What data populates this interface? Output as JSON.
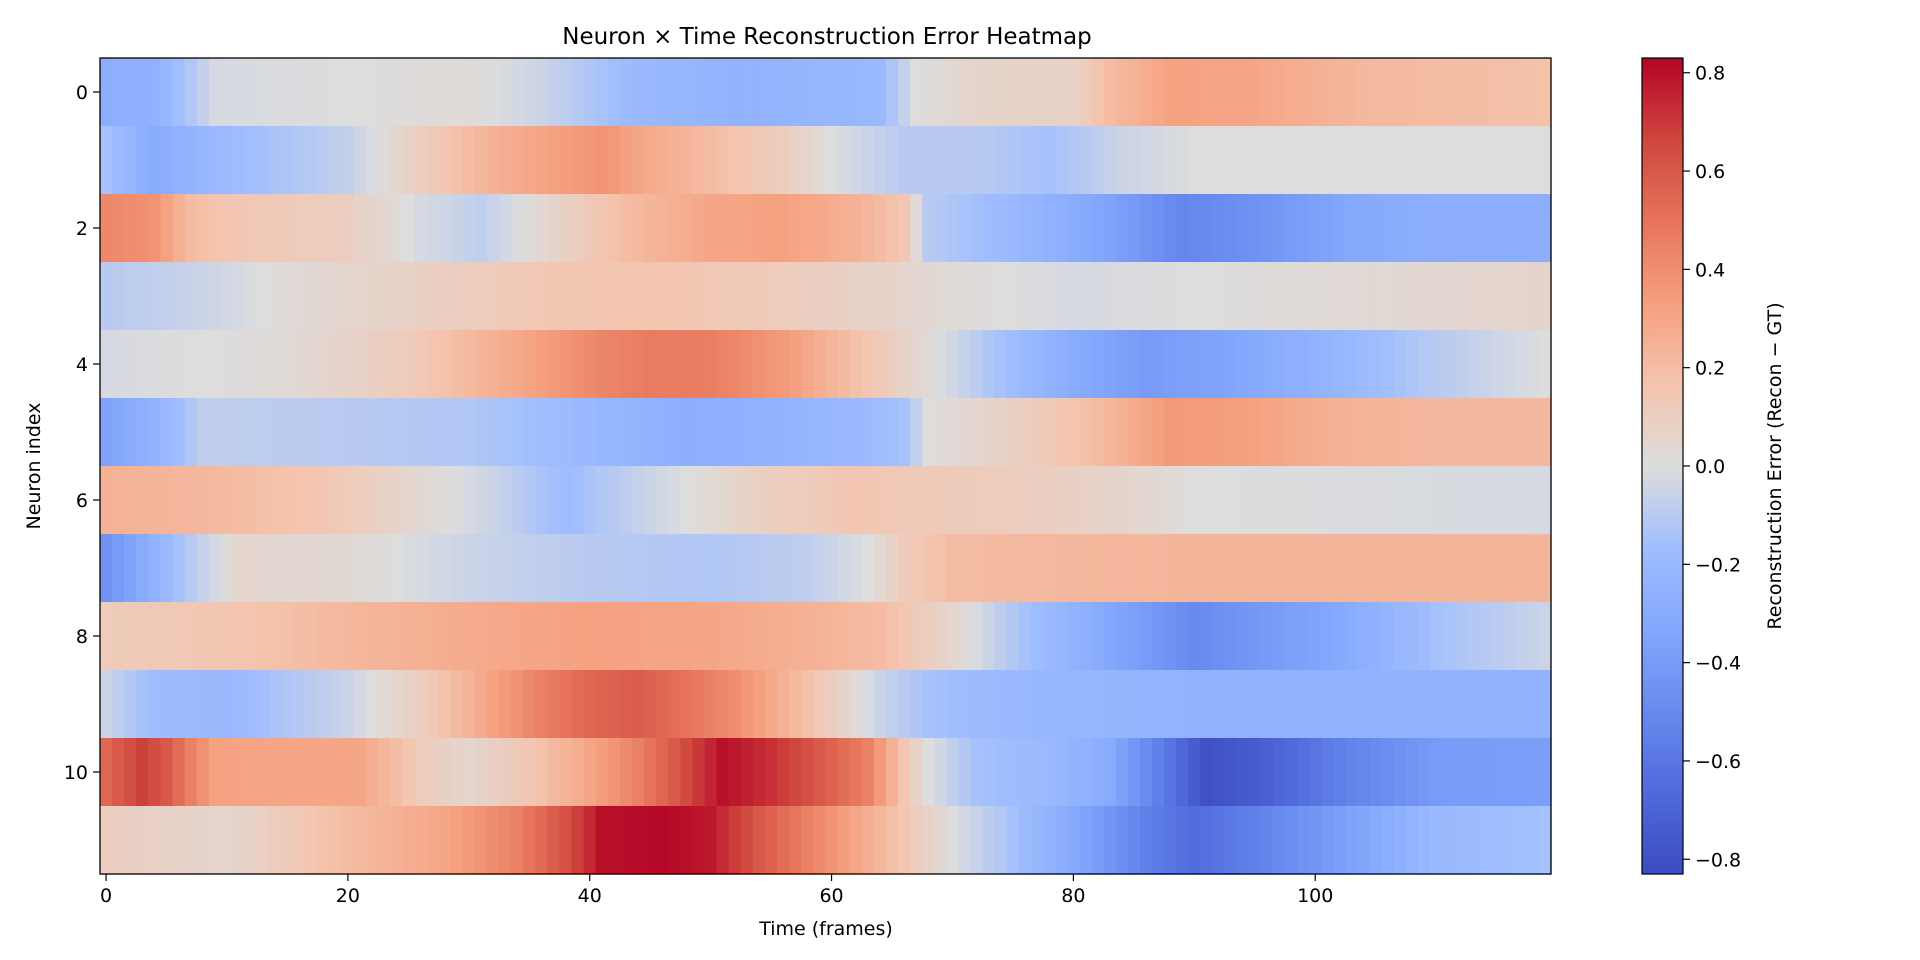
{
  "chart_data": {
    "type": "heatmap",
    "title": "Neuron × Time Reconstruction Error Heatmap",
    "xlabel": "Time (frames)",
    "ylabel": "Neuron index",
    "colorbar_label": "Reconstruction Error (Recon − GT)",
    "colormap": "coolwarm",
    "n_rows": 12,
    "n_cols": 120,
    "xlim": [
      -0.5,
      119.5
    ],
    "ylim": [
      11.5,
      -0.5
    ],
    "color_range": [
      -0.83,
      0.83
    ],
    "x_ticks": [
      0,
      20,
      40,
      60,
      80,
      100
    ],
    "y_ticks": [
      0,
      2,
      4,
      6,
      8,
      10
    ],
    "colorbar_ticks": [
      0.8,
      0.6,
      0.4,
      0.2,
      0.0,
      -0.2,
      -0.4,
      -0.6,
      -0.8
    ],
    "colorbar_tick_labels": [
      "0.8",
      "0.6",
      "0.4",
      "0.2",
      "0.0",
      "−0.2",
      "−0.4",
      "−0.6",
      "−0.8"
    ],
    "row_profiles": [
      [
        [
          0,
          -0.28
        ],
        [
          4,
          -0.26
        ],
        [
          9,
          -0.02
        ],
        [
          30,
          0.02
        ],
        [
          36,
          -0.05
        ],
        [
          44,
          -0.2
        ],
        [
          52,
          -0.25
        ],
        [
          60,
          -0.22
        ],
        [
          64,
          -0.2
        ],
        [
          67,
          0.0
        ],
        [
          72,
          0.06
        ],
        [
          80,
          0.08
        ],
        [
          83,
          0.2
        ],
        [
          88,
          0.32
        ],
        [
          95,
          0.3
        ],
        [
          104,
          0.22
        ],
        [
          110,
          0.2
        ],
        [
          119,
          0.18
        ]
      ],
      [
        [
          0,
          -0.15
        ],
        [
          4,
          -0.3
        ],
        [
          9,
          -0.2
        ],
        [
          20,
          -0.07
        ],
        [
          26,
          0.1
        ],
        [
          32,
          0.25
        ],
        [
          37,
          0.32
        ],
        [
          41,
          0.38
        ],
        [
          44,
          0.3
        ],
        [
          50,
          0.2
        ],
        [
          56,
          0.1
        ],
        [
          60,
          0.0
        ],
        [
          66,
          -0.1
        ],
        [
          72,
          -0.1
        ],
        [
          78,
          -0.15
        ],
        [
          84,
          -0.05
        ],
        [
          90,
          0.0
        ],
        [
          119,
          0.0
        ]
      ],
      [
        [
          0,
          0.42
        ],
        [
          4,
          0.38
        ],
        [
          7,
          0.2
        ],
        [
          10,
          0.15
        ],
        [
          20,
          0.1
        ],
        [
          26,
          -0.02
        ],
        [
          31,
          -0.08
        ],
        [
          37,
          0.06
        ],
        [
          43,
          0.2
        ],
        [
          50,
          0.3
        ],
        [
          56,
          0.32
        ],
        [
          62,
          0.25
        ],
        [
          66,
          0.15
        ],
        [
          68,
          -0.1
        ],
        [
          75,
          -0.2
        ],
        [
          83,
          -0.35
        ],
        [
          89,
          -0.52
        ],
        [
          95,
          -0.45
        ],
        [
          103,
          -0.32
        ],
        [
          110,
          -0.28
        ],
        [
          119,
          -0.28
        ]
      ],
      [
        [
          0,
          -0.1
        ],
        [
          8,
          -0.05
        ],
        [
          15,
          0.02
        ],
        [
          25,
          0.08
        ],
        [
          35,
          0.14
        ],
        [
          45,
          0.16
        ],
        [
          55,
          0.12
        ],
        [
          64,
          0.07
        ],
        [
          70,
          0.02
        ],
        [
          80,
          -0.02
        ],
        [
          90,
          0.0
        ],
        [
          100,
          0.02
        ],
        [
          119,
          0.06
        ]
      ],
      [
        [
          0,
          -0.02
        ],
        [
          15,
          0.02
        ],
        [
          25,
          0.12
        ],
        [
          32,
          0.25
        ],
        [
          37,
          0.35
        ],
        [
          41,
          0.43
        ],
        [
          45,
          0.47
        ],
        [
          50,
          0.46
        ],
        [
          56,
          0.35
        ],
        [
          62,
          0.18
        ],
        [
          68,
          0.02
        ],
        [
          74,
          -0.15
        ],
        [
          80,
          -0.3
        ],
        [
          86,
          -0.4
        ],
        [
          92,
          -0.35
        ],
        [
          100,
          -0.25
        ],
        [
          110,
          -0.1
        ],
        [
          119,
          0.0
        ]
      ],
      [
        [
          0,
          -0.35
        ],
        [
          4,
          -0.25
        ],
        [
          8,
          -0.08
        ],
        [
          20,
          -0.1
        ],
        [
          30,
          -0.12
        ],
        [
          40,
          -0.2
        ],
        [
          48,
          -0.28
        ],
        [
          55,
          -0.25
        ],
        [
          62,
          -0.2
        ],
        [
          66,
          -0.15
        ],
        [
          68,
          0.0
        ],
        [
          76,
          0.1
        ],
        [
          82,
          0.2
        ],
        [
          88,
          0.35
        ],
        [
          94,
          0.33
        ],
        [
          102,
          0.25
        ],
        [
          110,
          0.22
        ],
        [
          119,
          0.22
        ]
      ],
      [
        [
          0,
          0.25
        ],
        [
          8,
          0.22
        ],
        [
          18,
          0.15
        ],
        [
          25,
          0.05
        ],
        [
          32,
          -0.05
        ],
        [
          38,
          -0.18
        ],
        [
          42,
          -0.1
        ],
        [
          48,
          0.0
        ],
        [
          55,
          0.1
        ],
        [
          62,
          0.15
        ],
        [
          70,
          0.12
        ],
        [
          78,
          0.1
        ],
        [
          85,
          0.05
        ],
        [
          90,
          0.0
        ],
        [
          119,
          -0.02
        ]
      ],
      [
        [
          0,
          -0.45
        ],
        [
          3,
          -0.3
        ],
        [
          7,
          -0.1
        ],
        [
          11,
          0.05
        ],
        [
          20,
          0.03
        ],
        [
          30,
          -0.05
        ],
        [
          40,
          -0.1
        ],
        [
          50,
          -0.12
        ],
        [
          58,
          -0.08
        ],
        [
          63,
          0.0
        ],
        [
          66,
          0.12
        ],
        [
          70,
          0.2
        ],
        [
          80,
          0.22
        ],
        [
          90,
          0.23
        ],
        [
          119,
          0.23
        ]
      ],
      [
        [
          0,
          0.12
        ],
        [
          10,
          0.15
        ],
        [
          20,
          0.22
        ],
        [
          30,
          0.28
        ],
        [
          40,
          0.32
        ],
        [
          50,
          0.3
        ],
        [
          58,
          0.25
        ],
        [
          64,
          0.2
        ],
        [
          70,
          0.05
        ],
        [
          76,
          -0.15
        ],
        [
          82,
          -0.3
        ],
        [
          86,
          -0.4
        ],
        [
          90,
          -0.5
        ],
        [
          95,
          -0.42
        ],
        [
          102,
          -0.32
        ],
        [
          110,
          -0.15
        ],
        [
          119,
          -0.05
        ]
      ],
      [
        [
          0,
          -0.05
        ],
        [
          4,
          -0.18
        ],
        [
          10,
          -0.2
        ],
        [
          20,
          -0.05
        ],
        [
          26,
          0.1
        ],
        [
          32,
          0.32
        ],
        [
          36,
          0.45
        ],
        [
          40,
          0.55
        ],
        [
          44,
          0.58
        ],
        [
          48,
          0.5
        ],
        [
          52,
          0.4
        ],
        [
          56,
          0.25
        ],
        [
          60,
          0.1
        ],
        [
          64,
          -0.05
        ],
        [
          68,
          -0.15
        ],
        [
          74,
          -0.2
        ],
        [
          90,
          -0.25
        ],
        [
          119,
          -0.25
        ]
      ],
      [
        [
          0,
          0.55
        ],
        [
          3,
          0.68
        ],
        [
          5,
          0.6
        ],
        [
          7,
          0.45
        ],
        [
          9,
          0.32
        ],
        [
          15,
          0.3
        ],
        [
          21,
          0.3
        ],
        [
          26,
          0.12
        ],
        [
          30,
          0.05
        ],
        [
          35,
          0.15
        ],
        [
          40,
          0.3
        ],
        [
          44,
          0.45
        ],
        [
          48,
          0.65
        ],
        [
          51,
          0.8
        ],
        [
          55,
          0.72
        ],
        [
          59,
          0.6
        ],
        [
          63,
          0.45
        ],
        [
          66,
          0.15
        ],
        [
          68,
          0.0
        ],
        [
          72,
          -0.15
        ],
        [
          78,
          -0.2
        ],
        [
          83,
          -0.3
        ],
        [
          87,
          -0.55
        ],
        [
          91,
          -0.8
        ],
        [
          96,
          -0.72
        ],
        [
          102,
          -0.55
        ],
        [
          110,
          -0.4
        ],
        [
          119,
          -0.38
        ]
      ],
      [
        [
          0,
          0.1
        ],
        [
          10,
          0.05
        ],
        [
          20,
          0.2
        ],
        [
          28,
          0.3
        ],
        [
          34,
          0.45
        ],
        [
          38,
          0.62
        ],
        [
          41,
          0.8
        ],
        [
          46,
          0.82
        ],
        [
          50,
          0.78
        ],
        [
          54,
          0.6
        ],
        [
          58,
          0.45
        ],
        [
          62,
          0.3
        ],
        [
          66,
          0.15
        ],
        [
          70,
          0.0
        ],
        [
          75,
          -0.15
        ],
        [
          81,
          -0.35
        ],
        [
          86,
          -0.55
        ],
        [
          90,
          -0.65
        ],
        [
          95,
          -0.55
        ],
        [
          102,
          -0.38
        ],
        [
          110,
          -0.2
        ],
        [
          119,
          -0.15
        ]
      ]
    ]
  }
}
